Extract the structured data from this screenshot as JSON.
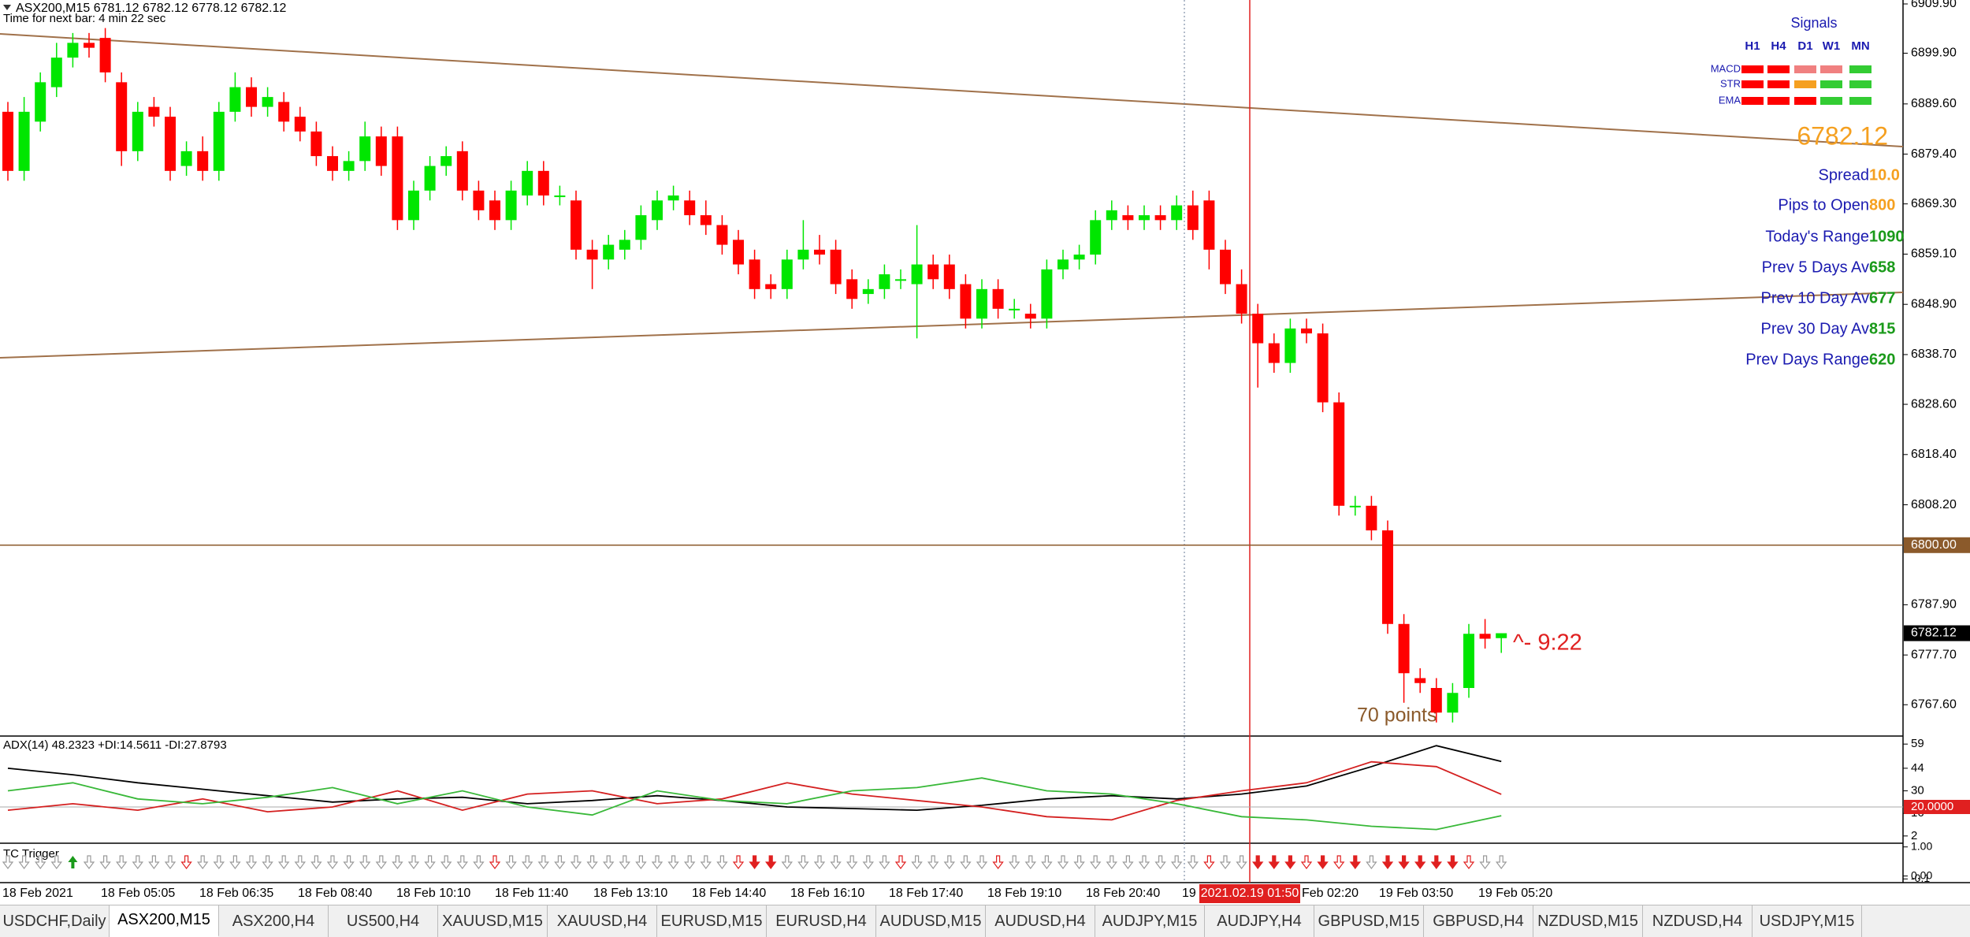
{
  "symbol_header": "ASX200,M15  6781.12 6782.12 6778.12 6782.12",
  "timer": "Time for next bar: 4 min 22 sec",
  "chart_data": {
    "type": "candlestick",
    "open": [
      6888,
      6876,
      6886,
      6893,
      6899,
      6902,
      6903,
      6894,
      6880,
      6889,
      6887,
      6877,
      6880,
      6876,
      6888,
      6893,
      6889,
      6890,
      6887,
      6884,
      6879,
      6876,
      6878,
      6883,
      6883,
      6866,
      6872,
      6877,
      6880,
      6872,
      6870,
      6866,
      6871,
      6876,
      6871,
      6870,
      6860,
      6858,
      6860,
      6862,
      6866,
      6870,
      6870,
      6867,
      6865,
      6862,
      6858,
      6853,
      6852,
      6858,
      6860,
      6860,
      6854,
      6851,
      6852,
      6854,
      6853,
      6857,
      6857,
      6853,
      6846,
      6852,
      6848,
      6847,
      6846,
      6856,
      6858,
      6859,
      6866,
      6867,
      6866,
      6867,
      6866,
      6869,
      6870,
      6860,
      6853,
      6847,
      6841,
      6837,
      6844,
      6843,
      6829,
      6808,
      6808,
      6803,
      6784,
      6773,
      6771,
      6766,
      6771,
      6782,
      6781.12
    ],
    "high": [
      6890,
      6891,
      6896,
      6902,
      6904,
      6904,
      6905,
      6896,
      6890,
      6891,
      6889,
      6882,
      6883,
      6890,
      6896,
      6895,
      6893,
      6892,
      6889,
      6886,
      6881,
      6880,
      6886,
      6885,
      6885,
      6874,
      6879,
      6881,
      6882,
      6874,
      6872,
      6874,
      6878,
      6878,
      6873,
      6872,
      6862,
      6863,
      6864,
      6869,
      6872,
      6873,
      6872,
      6870,
      6867,
      6864,
      6860,
      6855,
      6860,
      6866,
      6863,
      6862,
      6856,
      6854,
      6857,
      6856,
      6865,
      6859,
      6859,
      6855,
      6854,
      6854,
      6850,
      6849,
      6858,
      6860,
      6861,
      6868,
      6870,
      6869,
      6869,
      6869,
      6871,
      6872,
      6872,
      6862,
      6856,
      6849,
      6843,
      6846,
      6846,
      6845,
      6831,
      6810,
      6810,
      6805,
      6786,
      6775,
      6773,
      6772,
      6784,
      6785,
      6782.12
    ],
    "low": [
      6874,
      6874,
      6884,
      6891,
      6897,
      6899,
      6894,
      6877,
      6878,
      6885,
      6874,
      6875,
      6874,
      6874,
      6886,
      6887,
      6887,
      6884,
      6882,
      6877,
      6874,
      6874,
      6876,
      6875,
      6864,
      6864,
      6870,
      6875,
      6870,
      6866,
      6864,
      6864,
      6869,
      6869,
      6869,
      6858,
      6852,
      6856,
      6858,
      6860,
      6864,
      6868,
      6865,
      6863,
      6859,
      6855,
      6850,
      6850,
      6850,
      6856,
      6857,
      6851,
      6848,
      6849,
      6850,
      6852,
      6842,
      6852,
      6850,
      6844,
      6844,
      6846,
      6846,
      6844,
      6844,
      6854,
      6856,
      6857,
      6864,
      6864,
      6864,
      6864,
      6864,
      6862,
      6856,
      6851,
      6845,
      6832,
      6835,
      6835,
      6841,
      6827,
      6806,
      6806,
      6801,
      6782,
      6768,
      6770,
      6764,
      6764,
      6769,
      6779,
      6778.12
    ],
    "close": [
      6876,
      6888,
      6894,
      6899,
      6902,
      6901,
      6896,
      6880,
      6888,
      6887,
      6876,
      6880,
      6876,
      6888,
      6893,
      6889,
      6891,
      6886,
      6884,
      6879,
      6876,
      6878,
      6883,
      6877,
      6866,
      6872,
      6877,
      6879,
      6872,
      6868,
      6866,
      6872,
      6876,
      6871,
      6871,
      6860,
      6858,
      6861,
      6862,
      6867,
      6870,
      6871,
      6867,
      6865,
      6861,
      6857,
      6852,
      6852,
      6858,
      6860,
      6859,
      6853,
      6850,
      6852,
      6855,
      6854,
      6857,
      6854,
      6852,
      6846,
      6852,
      6848,
      6848,
      6846,
      6856,
      6858,
      6859,
      6866,
      6868,
      6866,
      6867,
      6866,
      6869,
      6864,
      6860,
      6853,
      6847,
      6841,
      6837,
      6844,
      6843,
      6829,
      6808,
      6808,
      6803,
      6784,
      6774,
      6772,
      6766,
      6770,
      6782,
      6781,
      6782.12
    ],
    "up_color": "#00e600",
    "down_color": "#ff0000",
    "ylim": [
      6761.4,
      6910.7
    ],
    "yticks": [
      {
        "value": 6909.9,
        "label": "6909.90"
      },
      {
        "value": 6899.9,
        "label": "6899.90"
      },
      {
        "value": 6889.6,
        "label": "6889.60"
      },
      {
        "value": 6879.4,
        "label": "6879.40"
      },
      {
        "value": 6869.3,
        "label": "6869.30"
      },
      {
        "value": 6859.1,
        "label": "6859.10"
      },
      {
        "value": 6848.9,
        "label": "6848.90"
      },
      {
        "value": 6838.7,
        "label": "6838.70"
      },
      {
        "value": 6828.6,
        "label": "6828.60"
      },
      {
        "value": 6818.4,
        "label": "6818.40"
      },
      {
        "value": 6808.2,
        "label": "6808.20"
      },
      {
        "value": 6787.9,
        "label": "6787.90"
      },
      {
        "value": 6777.7,
        "label": "6777.70"
      },
      {
        "value": 6767.6,
        "label": "6767.60"
      }
    ],
    "hline": {
      "value": 6800,
      "label": "6800.00"
    },
    "xtick_labels": [
      "18 Feb 2021",
      "18 Feb 05:05",
      "18 Feb 06:35",
      "18 Feb 08:40",
      "18 Feb 10:10",
      "18 Feb 11:40",
      "18 Feb 13:10",
      "18 Feb 14:40",
      "18 Feb 16:10",
      "18 Feb 17:40",
      "18 Feb 19:10",
      "18 Feb 20:40",
      "19",
      "Feb 02:20",
      "19 Feb 03:50",
      "19 Feb 05:20"
    ],
    "crosshair_time": "2021.02.19 01:50",
    "annotations": [
      "70 points",
      "^- 9:22"
    ]
  },
  "signals": {
    "title": "Signals",
    "columns": [
      "H1",
      "H4",
      "D1",
      "W1",
      "MN"
    ],
    "rows": [
      "MACD",
      "STR",
      "EMA"
    ]
  },
  "info": {
    "price": "6782.12",
    "lines": [
      [
        "Spread",
        "10.0"
      ],
      [
        "Pips to Open",
        "800"
      ],
      [
        "Today's Range",
        "1090"
      ],
      [
        "Prev 5 Days Av",
        "658"
      ],
      [
        "Prev 10 Day Av",
        "677"
      ],
      [
        "Prev 30 Day Av",
        "815"
      ],
      [
        "Prev Days Range",
        "620"
      ]
    ]
  },
  "adx_panel": {
    "type": "line",
    "title": "ADX(14) 48.2323 +DI:14.5611 -DI:27.8793",
    "x": [
      0,
      4,
      8,
      12,
      16,
      20,
      24,
      28,
      32,
      36,
      40,
      44,
      48,
      52,
      56,
      60,
      64,
      68,
      72,
      76,
      80,
      84,
      88,
      92
    ],
    "ylim": [
      -2,
      63
    ],
    "yticks": [
      59,
      44,
      30,
      16,
      2
    ],
    "level": {
      "value": 20,
      "label": "20.0000"
    },
    "series": [
      {
        "color": "#000000",
        "values": [
          44,
          40,
          35,
          31,
          27,
          23,
          25,
          26,
          22,
          24,
          27,
          24,
          20,
          19,
          18,
          21,
          25,
          27,
          25,
          28,
          33,
          45,
          58,
          48.2323
        ]
      },
      {
        "color": "#d42020",
        "values": [
          18,
          22,
          18,
          25,
          17,
          20,
          30,
          18,
          28,
          30,
          22,
          25,
          35,
          28,
          24,
          20,
          14,
          12,
          24,
          30,
          35,
          48,
          45,
          27.8793
        ]
      },
      {
        "color": "#38b838",
        "values": [
          30,
          35,
          25,
          22,
          26,
          32,
          22,
          30,
          20,
          15,
          30,
          24,
          22,
          30,
          32,
          38,
          30,
          28,
          22,
          14,
          12,
          8,
          6,
          14.5611
        ]
      }
    ]
  },
  "tc_panel": {
    "title": "TC Trigger",
    "ylim": [
      -0.2,
      1.1
    ],
    "yticks": [
      {
        "value": 1,
        "label": "1.00"
      },
      {
        "value": 0,
        "label": "0.00"
      },
      -0.1
    ]
  },
  "tabs": [
    "USDCHF,Daily",
    "ASX200,M15",
    "ASX200,H4",
    "US500,H4",
    "XAUUSD,M15",
    "XAUUSD,H4",
    "EURUSD,M15",
    "EURUSD,H4",
    "AUDUSD,M15",
    "AUDUSD,H4",
    "AUDJPY,M15",
    "AUDJPY,H4",
    "GBPUSD,M15",
    "GBPUSD,H4",
    "NZDUSD,M15",
    "NZDUSD,H4",
    "USDJPY,M15"
  ],
  "active_tab": 1
}
